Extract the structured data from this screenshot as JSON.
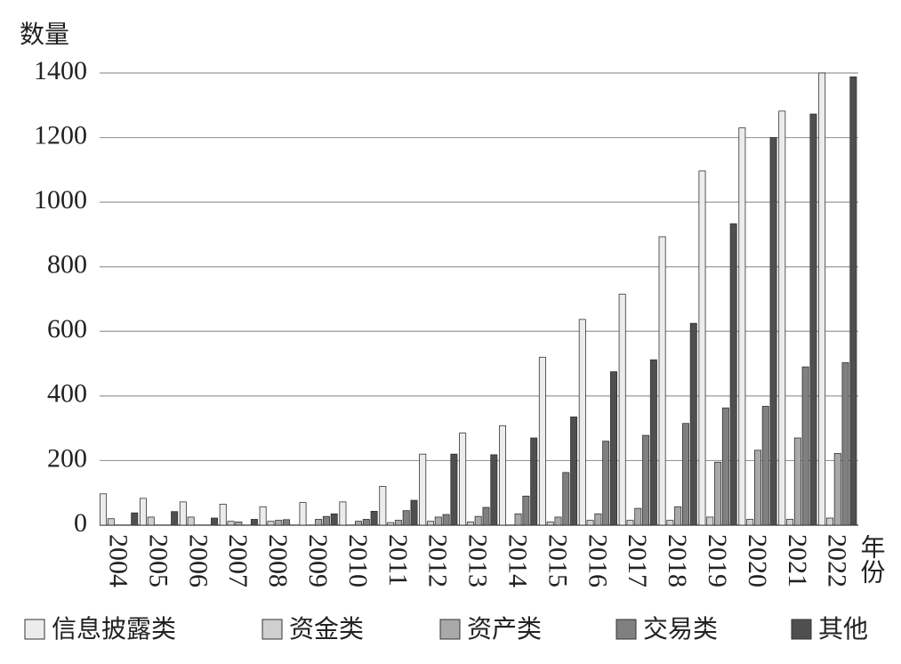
{
  "chart_data": {
    "type": "bar",
    "y_label": "数量",
    "x_label": "年份",
    "categories": [
      "2004",
      "2005",
      "2006",
      "2007",
      "2008",
      "2009",
      "2010",
      "2011",
      "2012",
      "2013",
      "2014",
      "2015",
      "2016",
      "2017",
      "2018",
      "2019",
      "2020",
      "2021",
      "2022"
    ],
    "series": [
      {
        "name": "信息披露类",
        "color": "#ececec",
        "values": [
          97,
          83,
          72,
          65,
          57,
          70,
          72,
          120,
          220,
          285,
          308,
          520,
          637,
          715,
          893,
          1097,
          1230,
          1282,
          1400
        ]
      },
      {
        "name": "资金类",
        "color": "#cfcfcf",
        "values": [
          20,
          25,
          25,
          12,
          12,
          0,
          0,
          8,
          12,
          10,
          0,
          10,
          15,
          15,
          15,
          25,
          18,
          18,
          22
        ]
      },
      {
        "name": "资产类",
        "color": "#a9a9a9",
        "values": [
          0,
          0,
          0,
          10,
          15,
          18,
          12,
          15,
          25,
          27,
          35,
          25,
          35,
          52,
          57,
          195,
          232,
          270,
          222
        ]
      },
      {
        "name": "交易类",
        "color": "#808080",
        "values": [
          0,
          0,
          0,
          0,
          17,
          27,
          18,
          45,
          33,
          55,
          90,
          163,
          260,
          278,
          315,
          363,
          368,
          490,
          503
        ]
      },
      {
        "name": "其他",
        "color": "#4f4f4f",
        "values": [
          38,
          42,
          22,
          18,
          0,
          35,
          43,
          77,
          220,
          218,
          270,
          335,
          475,
          512,
          625,
          933,
          1200,
          1273,
          1388
        ]
      }
    ],
    "ylim": [
      0,
      1400
    ],
    "yticks": [
      0,
      200,
      400,
      600,
      800,
      1000,
      1200,
      1400
    ],
    "grid": true
  }
}
